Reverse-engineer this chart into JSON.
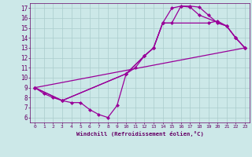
{
  "background_color": "#cce8e8",
  "grid_color": "#aacccc",
  "line_color": "#990099",
  "marker": "D",
  "markersize": 2.0,
  "linewidth": 0.9,
  "xlim": [
    -0.5,
    23.5
  ],
  "ylim": [
    5.5,
    17.5
  ],
  "xticks": [
    0,
    1,
    2,
    3,
    4,
    5,
    6,
    7,
    8,
    9,
    10,
    11,
    12,
    13,
    14,
    15,
    16,
    17,
    18,
    19,
    20,
    21,
    22,
    23
  ],
  "yticks": [
    6,
    7,
    8,
    9,
    10,
    11,
    12,
    13,
    14,
    15,
    16,
    17
  ],
  "xlabel": "Windchill (Refroidissement éolien,°C)",
  "font_color": "#660066",
  "lines": [
    [
      [
        0,
        9.0
      ],
      [
        1,
        8.4
      ],
      [
        2,
        8.0
      ],
      [
        3,
        7.7
      ],
      [
        4,
        7.5
      ],
      [
        5,
        7.5
      ],
      [
        6,
        6.8
      ],
      [
        7,
        6.3
      ],
      [
        8,
        6.0
      ],
      [
        9,
        7.2
      ],
      [
        10,
        10.4
      ],
      [
        11,
        11.0
      ],
      [
        12,
        12.2
      ],
      [
        13,
        13.0
      ],
      [
        14,
        15.5
      ],
      [
        15,
        15.5
      ],
      [
        16,
        17.2
      ],
      [
        17,
        17.2
      ],
      [
        18,
        17.1
      ],
      [
        19,
        16.3
      ],
      [
        20,
        15.5
      ],
      [
        21,
        15.2
      ],
      [
        22,
        14.0
      ],
      [
        23,
        13.0
      ]
    ],
    [
      [
        0,
        9.0
      ],
      [
        3,
        7.7
      ],
      [
        10,
        10.4
      ],
      [
        12,
        12.2
      ],
      [
        13,
        13.0
      ],
      [
        14,
        15.5
      ],
      [
        15,
        17.0
      ],
      [
        16,
        17.2
      ],
      [
        17,
        17.1
      ],
      [
        18,
        16.3
      ],
      [
        21,
        15.2
      ],
      [
        22,
        14.0
      ],
      [
        23,
        13.0
      ]
    ],
    [
      [
        0,
        9.0
      ],
      [
        3,
        7.7
      ],
      [
        10,
        10.4
      ],
      [
        12,
        12.2
      ],
      [
        13,
        13.0
      ],
      [
        14,
        15.5
      ],
      [
        19,
        15.5
      ],
      [
        20,
        15.7
      ],
      [
        21,
        15.2
      ],
      [
        22,
        14.0
      ],
      [
        23,
        13.0
      ]
    ],
    [
      [
        0,
        9.0
      ],
      [
        23,
        13.0
      ]
    ]
  ]
}
